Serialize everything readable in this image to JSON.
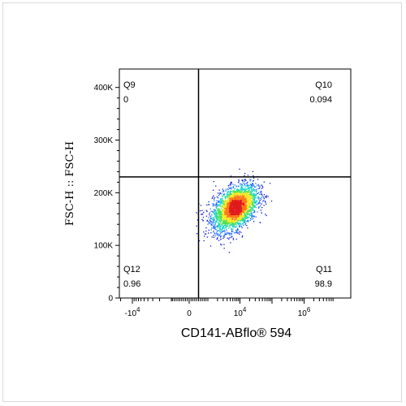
{
  "chart_data": {
    "type": "scatter",
    "subtype": "flow-cytometry density plot",
    "xlabel": "CD141-ABflo® 594",
    "ylabel": "FSC-H :: FSC-H",
    "x_scale": "biexponential",
    "x_ticks": [
      {
        "label": "-10",
        "exp": "4",
        "value": -10000
      },
      {
        "label": "0",
        "exp": "",
        "value": 0
      },
      {
        "label": "10",
        "exp": "4",
        "value": 10000
      },
      {
        "label": "10",
        "exp": "6",
        "value": 1000000
      }
    ],
    "y_ticks": [
      {
        "label": "0",
        "value": 0
      },
      {
        "label": "100K",
        "value": 100000
      },
      {
        "label": "200K",
        "value": 200000
      },
      {
        "label": "300K",
        "value": 300000
      },
      {
        "label": "400K",
        "value": 400000
      }
    ],
    "ylim": [
      0,
      435000
    ],
    "gate": {
      "x": 500,
      "y": 230000
    },
    "quadrants": [
      {
        "name": "Q9",
        "value": "0",
        "position": "top-left"
      },
      {
        "name": "Q10",
        "value": "0.094",
        "position": "top-right"
      },
      {
        "name": "Q12",
        "value": "0.96",
        "position": "bottom-left"
      },
      {
        "name": "Q11",
        "value": "98.9",
        "position": "bottom-right"
      }
    ],
    "population": {
      "center_x": 7000,
      "center_y": 172000,
      "x_spread_decades": 0.55,
      "y_spread": 22000,
      "events": 3000
    },
    "density_colors": [
      "#0a1acc",
      "#1f6bff",
      "#14d6c8",
      "#4ce04c",
      "#f2e81e",
      "#ff7a1a",
      "#e01b1b"
    ]
  }
}
